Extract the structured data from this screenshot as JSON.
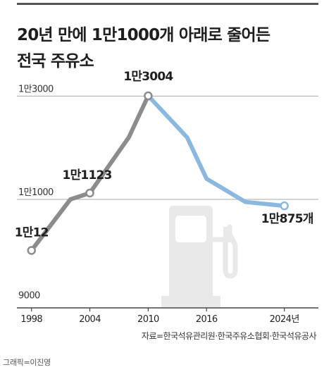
{
  "title_line1": "20년 만에 1만1000개 아래로 줄어든",
  "title_line2": "전국 주유소",
  "source": "자료=한국석유관리원·한국주유소협회·한국석유공사",
  "credit": "그래픽=이진영",
  "icon": "fuel-pump-icon",
  "colors": {
    "line_gray": "#8c8c8c",
    "line_blue": "#8ab8df",
    "axis": "#444444",
    "grid": "#aaaaaa",
    "pump": "#e9e9e9"
  },
  "chart_data": {
    "type": "line",
    "xlim": [
      1996.5,
      2027.5
    ],
    "ylim": [
      8900,
      13250
    ],
    "y_ticks": [
      {
        "value": 9000,
        "label": "9000"
      },
      {
        "value": 11000,
        "label": "1만1000"
      },
      {
        "value": 13000,
        "label": "1만3000"
      }
    ],
    "x_ticks": [
      {
        "value": 1998,
        "label": "1998"
      },
      {
        "value": 2004,
        "label": "2004"
      },
      {
        "value": 2010,
        "label": "2010"
      },
      {
        "value": 2016,
        "label": "2016"
      },
      {
        "value": 2024,
        "label": "2024년"
      }
    ],
    "x": [
      1998,
      2002,
      2004,
      2008,
      2010,
      2014,
      2016,
      2020,
      2024
    ],
    "y": [
      10012,
      11000,
      11123,
      12200,
      13004,
      12200,
      11400,
      10950,
      10875
    ],
    "grid": true,
    "annotations": [
      {
        "x": 1998,
        "y": 10012,
        "label": "1만12",
        "color": "gray"
      },
      {
        "x": 2004,
        "y": 11123,
        "label": "1만1123",
        "color": "gray"
      },
      {
        "x": 2010,
        "y": 13004,
        "label": "1만3004",
        "color": "gray"
      },
      {
        "x": 2024,
        "y": 10875,
        "label": "1만875개",
        "color": "blue"
      }
    ]
  }
}
